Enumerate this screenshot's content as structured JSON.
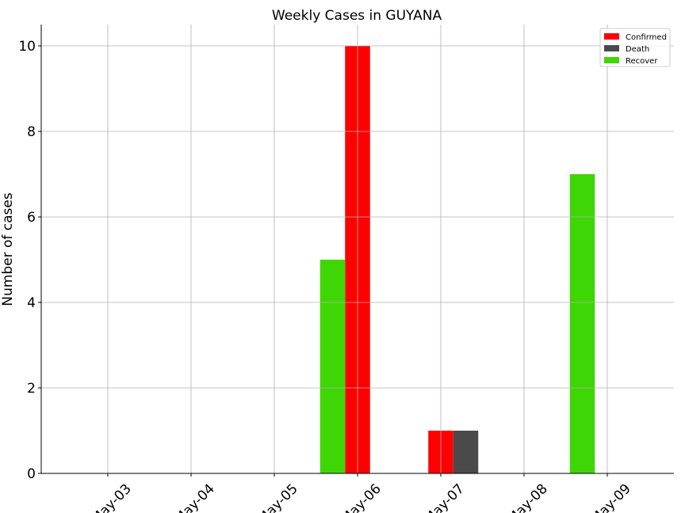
{
  "chart_data": {
    "type": "bar",
    "title": "Weekly Cases in GUYANA",
    "xlabel": "",
    "ylabel": "Number of cases",
    "categories": [
      "May-03",
      "May-04",
      "May-05",
      "May-06",
      "May-07",
      "May-08",
      "May-09"
    ],
    "ylim": [
      0,
      10.5
    ],
    "yticks": [
      0,
      2,
      4,
      6,
      8,
      10
    ],
    "grid": true,
    "legend_position": "top-right",
    "series": [
      {
        "name": "Confirmed",
        "color": "#ff0000",
        "values": [
          0,
          0,
          0,
          10,
          1,
          0,
          0
        ]
      },
      {
        "name": "Death",
        "color": "#4a4a4a",
        "values": [
          0,
          0,
          0,
          0,
          1,
          0,
          0
        ]
      },
      {
        "name": "Recover",
        "color": "#3ed604",
        "values": [
          0,
          0,
          0,
          5,
          0,
          0,
          7
        ]
      }
    ]
  }
}
